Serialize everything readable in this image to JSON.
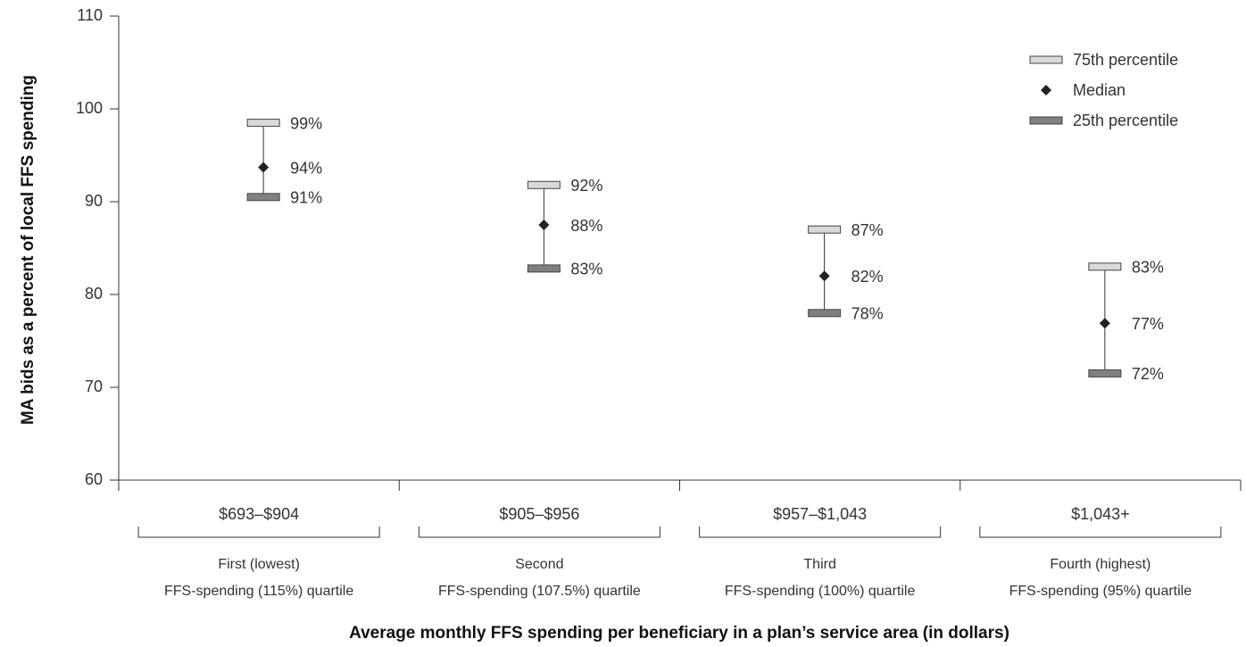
{
  "chart_data": {
    "type": "range",
    "y_label": "MA bids as a percent of local FFS spending",
    "x_label": "Average monthly FFS spending per beneficiary in a plan’s service area (in dollars)",
    "categories": [
      "$693–$904",
      "$905–$956",
      "$957–$1,043",
      "$1,043+"
    ],
    "groups": [
      [
        "First (lowest)",
        "FFS-spending (115%) quartile"
      ],
      [
        "Second",
        "FFS-spending (107.5%) quartile"
      ],
      [
        "Third",
        "FFS-spending (100%) quartile"
      ],
      [
        "Fourth (highest)",
        "FFS-spending (95%) quartile"
      ]
    ],
    "series": [
      {
        "name": "75th percentile",
        "color": "#d9d9d9",
        "values": [
          98.5,
          91.8,
          87.0,
          83.0
        ],
        "value_labels": [
          "99%",
          "92%",
          "87%",
          "83%"
        ]
      },
      {
        "name": "Median",
        "color": "#222222",
        "values": [
          93.7,
          87.5,
          82.0,
          76.9
        ],
        "value_labels": [
          "94%",
          "88%",
          "82%",
          "77%"
        ]
      },
      {
        "name": "25th percentile",
        "color": "#808080",
        "values": [
          90.5,
          82.8,
          78.0,
          71.5
        ],
        "value_labels": [
          "91%",
          "83%",
          "78%",
          "72%"
        ]
      }
    ],
    "ylim": [
      60,
      110
    ],
    "yticks": [
      60,
      70,
      80,
      90,
      100,
      110
    ],
    "legend": "top-right"
  }
}
